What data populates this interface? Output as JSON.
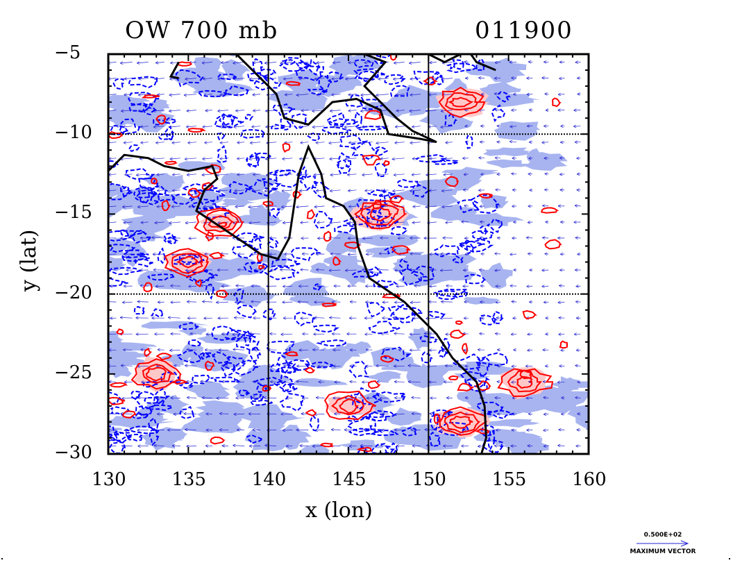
{
  "header": {
    "left_title": "OW 700 mb",
    "right_title": "011900"
  },
  "chart_data": {
    "type": "contour",
    "title": "OW 700 mb",
    "time_label": "011900",
    "xlabel": "x (lon)",
    "ylabel": "y (lat)",
    "xlim": [
      130,
      160
    ],
    "ylim": [
      -30,
      -5
    ],
    "xticks": [
      130,
      135,
      140,
      145,
      150,
      155,
      160
    ],
    "yticks": [
      -5,
      -10,
      -15,
      -20,
      -25,
      -30
    ],
    "grid_lines": {
      "x": [
        140,
        150
      ],
      "y": [
        -10,
        -20
      ]
    },
    "colors": {
      "positive_contour": "#ff0000",
      "positive_fill": "#ffc8c8",
      "negative_contour": "#0000ff",
      "negative_fill": "#a8b4f0",
      "vectors": "#2020d0",
      "coastline": "#000000"
    },
    "legend": {
      "scale_label": "0.500E+02",
      "caption": "MAXIMUM VECTOR"
    }
  }
}
